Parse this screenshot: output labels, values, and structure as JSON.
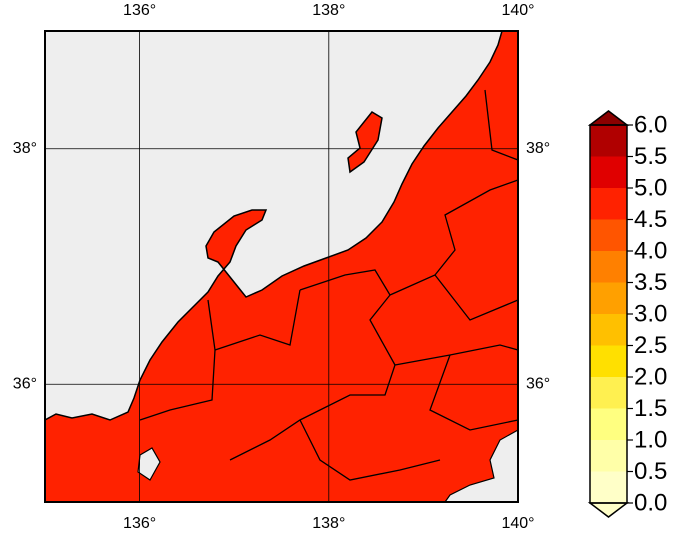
{
  "map": {
    "lonlim": [
      135,
      140
    ],
    "latlim": [
      35,
      39
    ],
    "lonticks": [
      {
        "value": 136,
        "label": "136°"
      },
      {
        "value": 138,
        "label": "138°"
      },
      {
        "value": 140,
        "label": "140°"
      }
    ],
    "latticks": [
      {
        "value": 36,
        "label": "36°"
      },
      {
        "value": 38,
        "label": "38°"
      }
    ],
    "grid": true,
    "sea_color": "#eeeeee",
    "land_color": "#ff2200"
  },
  "colorbar": {
    "ticks": [
      {
        "value": 0,
        "label": "0.0"
      },
      {
        "value": 0.5,
        "label": "0.5"
      },
      {
        "value": 1,
        "label": "1.0"
      },
      {
        "value": 1.5,
        "label": "1.5"
      },
      {
        "value": 2,
        "label": "2.0"
      },
      {
        "value": 2.5,
        "label": "2.5"
      },
      {
        "value": 3,
        "label": "3.0"
      },
      {
        "value": 3.5,
        "label": "3.5"
      },
      {
        "value": 4,
        "label": "4.0"
      },
      {
        "value": 4.5,
        "label": "4.5"
      },
      {
        "value": 5,
        "label": "5.0"
      },
      {
        "value": 5.5,
        "label": "5.5"
      },
      {
        "value": 6,
        "label": "6.0"
      }
    ],
    "colors": [
      "#ffffc8",
      "#ffffa8",
      "#ffff80",
      "#fff050",
      "#ffe000",
      "#ffc000",
      "#ffa000",
      "#ff8000",
      "#ff5500",
      "#ff2200",
      "#e00000",
      "#b00000"
    ],
    "under_color": "#ffffc8",
    "over_color": "#8b0000"
  }
}
